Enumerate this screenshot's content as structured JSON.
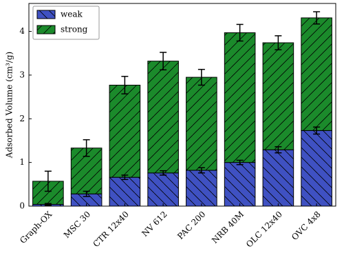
{
  "chart_data": {
    "type": "stacked_bar",
    "ylabel": "Adsorbed Volume (cm³/g)",
    "categories": [
      "Graph-OX",
      "MSC 30",
      "CTR 12x40",
      "NV 612",
      "PAC 200",
      "NRB 40M",
      "OLC 12x40",
      "OVC 4x8"
    ],
    "series": [
      {
        "name": "weak",
        "color": "#3f51c2",
        "hatch": "\\",
        "values": [
          0.04,
          0.28,
          0.66,
          0.76,
          0.82,
          1.0,
          1.29,
          1.73
        ],
        "errors": [
          0.02,
          0.06,
          0.05,
          0.05,
          0.06,
          0.05,
          0.07,
          0.08
        ]
      },
      {
        "name": "strong",
        "color": "#1b8a2b",
        "hatch": "/",
        "values": [
          0.53,
          1.05,
          2.11,
          2.56,
          2.13,
          2.97,
          2.45,
          2.58
        ],
        "errors": [
          0.23,
          0.19,
          0.2,
          0.2,
          0.18,
          0.19,
          0.16,
          0.14
        ]
      }
    ],
    "ylim": [
      0,
      4.64
    ],
    "yticks": [
      0,
      1,
      2,
      3,
      4
    ],
    "legend": "upper left"
  }
}
